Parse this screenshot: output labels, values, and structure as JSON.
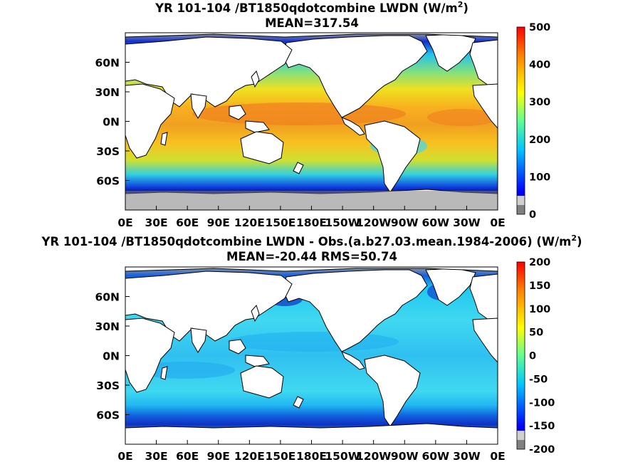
{
  "chart_data": [
    {
      "type": "heatmap",
      "title": "YR 101-104 /BT1850qdotcombine LWDN (W/m",
      "title_superscript": "2",
      "title_suffix": ")",
      "subtitle": "MEAN=317.54",
      "projection": "cylindrical equidistant world map",
      "x_tick_labels": [
        "0E",
        "30E",
        "60E",
        "90E",
        "120E",
        "150E",
        "180E",
        "150W",
        "120W",
        "90W",
        "60W",
        "30W",
        "0E"
      ],
      "y_tick_labels": [
        "60N",
        "30N",
        "0N",
        "30S",
        "60S"
      ],
      "y_tick_lat": [
        60,
        30,
        0,
        -30,
        -60
      ],
      "lat_range": [
        -90,
        90
      ],
      "colorbar": {
        "min": 0,
        "max": 500,
        "tick_values": [
          0,
          100,
          200,
          300,
          400,
          500
        ],
        "tick_labels": [
          "0",
          "100",
          "200",
          "300",
          "400",
          "500"
        ]
      },
      "annotation": "ocean-only field; land masked white; polar sea ice shown in gray",
      "zonal_profile": [
        {
          "lat": 80,
          "value": 150
        },
        {
          "lat": 65,
          "value": 230
        },
        {
          "lat": 50,
          "value": 300
        },
        {
          "lat": 35,
          "value": 345
        },
        {
          "lat": 20,
          "value": 385
        },
        {
          "lat": 10,
          "value": 405
        },
        {
          "lat": 0,
          "value": 395
        },
        {
          "lat": -10,
          "value": 385
        },
        {
          "lat": -20,
          "value": 360
        },
        {
          "lat": -30,
          "value": 330
        },
        {
          "lat": -40,
          "value": 295
        },
        {
          "lat": -50,
          "value": 260
        },
        {
          "lat": -57,
          "value": 210
        },
        {
          "lat": -62,
          "value": 130
        },
        {
          "lat": -66,
          "value": 80
        }
      ]
    },
    {
      "type": "heatmap",
      "title": "YR 101-104 /BT1850qdotcombine LWDN - Obs.(a.b27.03.mean.1984-2006) (W/m",
      "title_superscript": "2",
      "title_suffix": ")",
      "subtitle": "MEAN=-20.44 RMS=50.74",
      "projection": "cylindrical equidistant world map",
      "x_tick_labels": [
        "0E",
        "30E",
        "60E",
        "90E",
        "120E",
        "150E",
        "180E",
        "150W",
        "120W",
        "90W",
        "60W",
        "30W",
        "0E"
      ],
      "y_tick_labels": [
        "60N",
        "30N",
        "0N",
        "30S",
        "60S"
      ],
      "y_tick_lat": [
        60,
        30,
        0,
        -30,
        -60
      ],
      "lat_range": [
        -90,
        90
      ],
      "colorbar": {
        "min": -200,
        "max": 200,
        "tick_values": [
          -200,
          -150,
          -100,
          -50,
          0,
          50,
          100,
          150,
          200
        ],
        "tick_labels": [
          "-200",
          "-150",
          "-100",
          "-50",
          "0",
          "50",
          "100",
          "150",
          "200"
        ]
      },
      "annotation": "difference field; mostly -50 to 0; strong negative bias near 60S and along polar ice edges",
      "zonal_profile": [
        {
          "lat": 78,
          "value": -80
        },
        {
          "lat": 65,
          "value": -40
        },
        {
          "lat": 50,
          "value": -25
        },
        {
          "lat": 30,
          "value": -15
        },
        {
          "lat": 15,
          "value": -20
        },
        {
          "lat": 0,
          "value": -25
        },
        {
          "lat": -15,
          "value": -25
        },
        {
          "lat": -30,
          "value": -20
        },
        {
          "lat": -45,
          "value": -15
        },
        {
          "lat": -55,
          "value": -40
        },
        {
          "lat": -60,
          "value": -90
        },
        {
          "lat": -65,
          "value": -110
        }
      ]
    }
  ]
}
